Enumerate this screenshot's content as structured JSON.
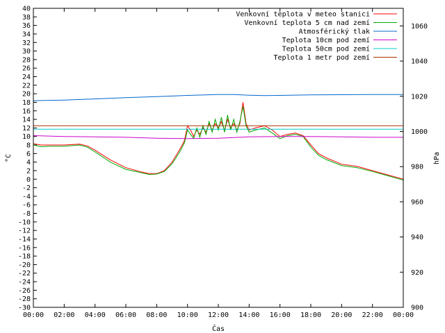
{
  "chart_data": {
    "type": "line",
    "title": "",
    "xlabel": "Čas",
    "ylabel_left": "°C",
    "ylabel_right": "hPa",
    "ylim_left": [
      -30,
      40
    ],
    "ylim_right": [
      900,
      1070
    ],
    "xlim_hours": [
      0,
      24
    ],
    "x_ticks": [
      "00:00",
      "02:00",
      "04:00",
      "06:00",
      "08:00",
      "10:00",
      "12:00",
      "14:00",
      "16:00",
      "18:00",
      "20:00",
      "22:00",
      "00:00"
    ],
    "y_left_ticks": [
      40,
      38,
      36,
      34,
      32,
      30,
      28,
      26,
      24,
      22,
      20,
      18,
      16,
      14,
      12,
      10,
      8,
      6,
      4,
      2,
      0,
      -2,
      -4,
      -6,
      -8,
      -10,
      -12,
      -14,
      -16,
      -18,
      -20,
      -22,
      -24,
      -26,
      -28,
      -30
    ],
    "y_right_ticks": [
      1060,
      1040,
      1020,
      1000,
      980,
      960,
      940,
      920,
      900
    ],
    "grid": false,
    "legend_position": "top-right",
    "series": [
      {
        "name": "Venkovní teplota v meteo stanici",
        "color": "#ff0000",
        "axis": "left",
        "x": [
          0,
          0.5,
          1,
          2,
          3,
          3.5,
          4,
          5,
          6,
          7,
          7.5,
          8,
          8.5,
          9,
          9.5,
          9.8,
          10,
          10.2,
          10.4,
          10.6,
          10.8,
          11,
          11.2,
          11.4,
          11.6,
          11.8,
          12,
          12.2,
          12.4,
          12.6,
          12.8,
          13,
          13.2,
          13.4,
          13.6,
          13.8,
          14,
          14.4,
          15,
          15.5,
          16,
          16.5,
          17,
          17.5,
          18,
          18.5,
          19,
          20,
          21,
          22,
          23,
          24
        ],
        "values": [
          8.3,
          8.0,
          8.0,
          8.0,
          8.2,
          7.8,
          6.8,
          4.5,
          2.7,
          1.7,
          1.3,
          1.3,
          2.0,
          4.0,
          7.0,
          9.0,
          12.5,
          11.5,
          10.0,
          11.5,
          10.5,
          12.0,
          11.0,
          13.0,
          11.5,
          13.0,
          12.0,
          13.5,
          11.5,
          14.0,
          12.0,
          13.0,
          11.5,
          13.0,
          18.0,
          13.0,
          11.5,
          12.0,
          12.5,
          11.5,
          10.0,
          10.5,
          10.8,
          10.2,
          8.0,
          6.0,
          5.0,
          3.5,
          3.0,
          2.0,
          1.0,
          0.0
        ]
      },
      {
        "name": "Venkovní teplota 5 cm nad zemí",
        "color": "#00aa00",
        "axis": "left",
        "x": [
          0,
          0.5,
          1,
          2,
          3,
          3.5,
          4,
          5,
          6,
          7,
          7.5,
          8,
          8.5,
          9,
          9.5,
          9.8,
          10,
          10.2,
          10.4,
          10.6,
          10.8,
          11,
          11.2,
          11.4,
          11.6,
          11.8,
          12,
          12.2,
          12.4,
          12.6,
          12.8,
          13,
          13.2,
          13.4,
          13.6,
          13.8,
          14,
          14.4,
          15,
          15.5,
          16,
          16.5,
          17,
          17.5,
          18,
          18.5,
          19,
          20,
          21,
          22,
          23,
          24
        ],
        "values": [
          8.0,
          7.6,
          7.7,
          7.7,
          8.0,
          7.5,
          6.4,
          4.0,
          2.3,
          1.5,
          1.1,
          1.2,
          1.8,
          3.6,
          6.4,
          8.5,
          11.5,
          10.5,
          9.5,
          12.0,
          9.8,
          12.5,
          10.5,
          13.5,
          11.0,
          14.0,
          11.5,
          14.5,
          11.0,
          15.0,
          11.5,
          14.0,
          11.0,
          13.5,
          17.0,
          12.5,
          11.0,
          11.5,
          12.0,
          10.8,
          9.5,
          10.2,
          10.5,
          10.0,
          7.5,
          5.6,
          4.6,
          3.2,
          2.7,
          1.8,
          0.8,
          -0.2
        ]
      },
      {
        "name": "Atmosférický tlak",
        "color": "#0066cc",
        "axis": "right",
        "x": [
          0,
          2,
          4,
          6,
          8,
          10,
          12,
          13,
          14,
          15,
          16,
          18,
          20,
          22,
          24
        ],
        "values": [
          1017.5,
          1017.8,
          1018.5,
          1019.2,
          1019.8,
          1020.5,
          1021,
          1021,
          1020.6,
          1020.4,
          1020.5,
          1020.8,
          1020.9,
          1021,
          1021
        ]
      },
      {
        "name": "Teplota 10cm pod zemí",
        "color": "#cc00cc",
        "axis": "left",
        "x": [
          0,
          2,
          4,
          6,
          8,
          10,
          12,
          14,
          16,
          18,
          20,
          22,
          24
        ],
        "values": [
          10.2,
          10.0,
          9.9,
          9.8,
          9.6,
          9.5,
          9.6,
          9.9,
          10.0,
          10.0,
          9.9,
          9.8,
          9.8
        ]
      },
      {
        "name": "Teplota 50cm pod zemí",
        "color": "#00cccc",
        "axis": "left",
        "x": [
          0,
          24
        ],
        "values": [
          11.7,
          11.7
        ]
      },
      {
        "name": "Teplota 1 metr pod zemí",
        "color": "#aa3300",
        "axis": "left",
        "x": [
          0,
          24
        ],
        "values": [
          12.5,
          12.5
        ]
      }
    ]
  }
}
